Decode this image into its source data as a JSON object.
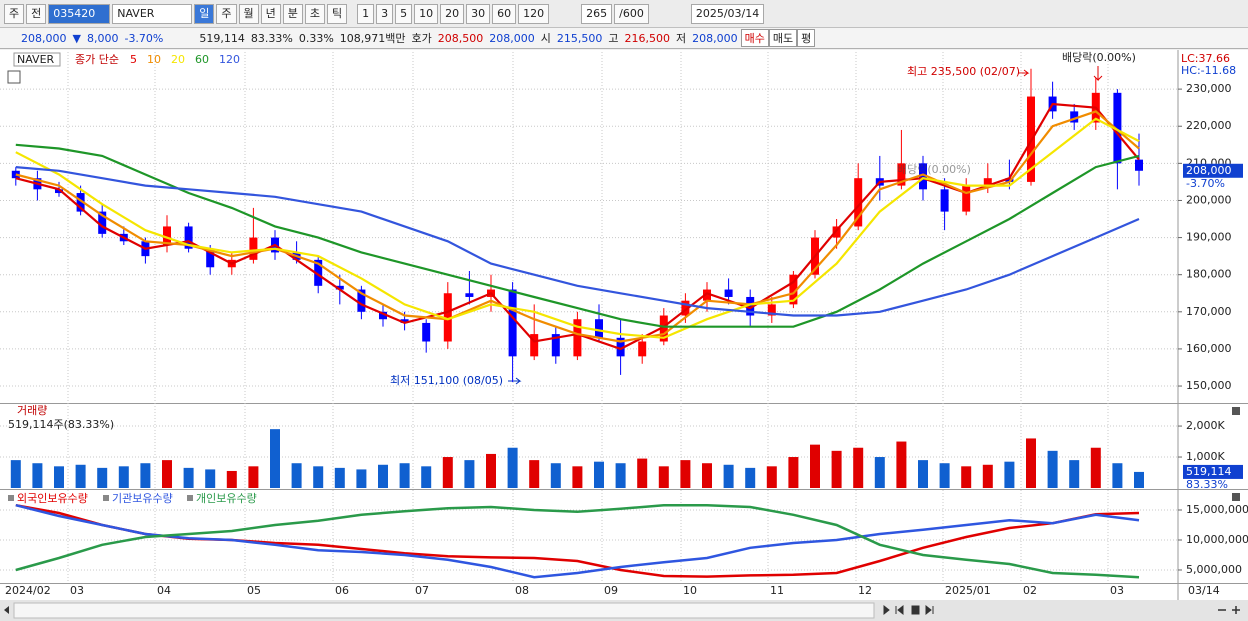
{
  "toolbar": [
    "주",
    "전",
    "035420",
    "NAVER",
    "일",
    "주",
    "월",
    "년",
    "분",
    "초",
    "틱",
    "1",
    "3",
    "5",
    "10",
    "20",
    "30",
    "60",
    "120",
    "265",
    "/600",
    "2025/03/14"
  ],
  "info": [
    "208,000",
    "▼",
    "8,000",
    "-3.70%",
    "519,114",
    "83.33%",
    "0.33%",
    "108,971백만",
    "호가",
    "208,500",
    "208,000",
    "시",
    "215,500",
    "고",
    "216,500",
    "저",
    "208,000",
    "매수",
    "매도",
    "평"
  ],
  "x_axis_labels": [
    "2024/02",
    "03",
    "04",
    "05",
    "06",
    "07",
    "08",
    "09",
    "10",
    "11",
    "12",
    "2025/01",
    "02",
    "03",
    "03/14"
  ],
  "chart_data": [
    {
      "type": "candlestick",
      "title": "NAVER",
      "ma_label": "종가 단순",
      "open": [
        208000,
        206000,
        203000,
        202000,
        197000,
        191000,
        189000,
        188000,
        193000,
        187000,
        182000,
        184000,
        190000,
        186000,
        184000,
        177000,
        176000,
        170000,
        168000,
        167000,
        162000,
        175000,
        174000,
        176000,
        158000,
        164000,
        158000,
        168000,
        163000,
        158000,
        162000,
        169000,
        173000,
        176000,
        174000,
        169000,
        172000,
        180000,
        190000,
        193000,
        206000,
        204000,
        210000,
        203000,
        197000,
        204000,
        206000,
        205000,
        228000,
        224000,
        221000,
        229000,
        211000
      ],
      "high": [
        209000,
        208000,
        205000,
        204000,
        199000,
        193000,
        190000,
        196000,
        194000,
        188000,
        186000,
        198000,
        192000,
        189000,
        185000,
        180000,
        177000,
        172000,
        170000,
        168000,
        178000,
        181000,
        180000,
        178000,
        172000,
        166000,
        170000,
        172000,
        168000,
        164000,
        171000,
        175000,
        178000,
        179000,
        176000,
        174000,
        181000,
        192000,
        195000,
        210000,
        212000,
        219000,
        212000,
        206000,
        206000,
        210000,
        211000,
        235500,
        232000,
        226000,
        233000,
        230000,
        218000
      ],
      "low": [
        204000,
        200000,
        201000,
        196000,
        190000,
        188000,
        183000,
        186000,
        186000,
        180000,
        180000,
        183000,
        184000,
        183000,
        175000,
        172000,
        168000,
        166000,
        165000,
        159000,
        160000,
        172000,
        170000,
        151100,
        157000,
        156000,
        157000,
        162000,
        153000,
        156000,
        161000,
        167000,
        170000,
        172000,
        166000,
        167000,
        171000,
        179000,
        187000,
        192000,
        200000,
        203000,
        200000,
        192000,
        196000,
        202000,
        203000,
        204000,
        222000,
        219000,
        219000,
        203000,
        204000
      ],
      "close": [
        206000,
        203000,
        202000,
        197000,
        191000,
        189000,
        185000,
        193000,
        187000,
        182000,
        184000,
        190000,
        186000,
        184000,
        177000,
        176000,
        170000,
        168000,
        167000,
        162000,
        175000,
        174000,
        176000,
        158000,
        164000,
        158000,
        168000,
        163000,
        158000,
        162000,
        169000,
        173000,
        176000,
        174000,
        169000,
        172000,
        180000,
        190000,
        193000,
        206000,
        204000,
        210000,
        203000,
        197000,
        204000,
        206000,
        205000,
        228000,
        224000,
        221000,
        229000,
        210000,
        208000
      ],
      "up_color": "#ff0000",
      "down_color": "#0000ff",
      "series": [
        {
          "name": "5",
          "color": "#e00000",
          "values": [
            206000,
            203000,
            193000,
            187000,
            189000,
            183000,
            188000,
            180000,
            172000,
            167000,
            170000,
            175000,
            162000,
            164000,
            160000,
            166000,
            175000,
            171000,
            178000,
            192000,
            205000,
            206000,
            202000,
            206000,
            226000,
            225000,
            211000
          ]
        },
        {
          "name": "10",
          "color": "#f08c00",
          "values": [
            207000,
            204000,
            196000,
            189000,
            188000,
            185000,
            187000,
            183000,
            175000,
            169000,
            168000,
            173000,
            168000,
            164000,
            162000,
            164000,
            173000,
            172000,
            175000,
            188000,
            203000,
            207000,
            202000,
            205000,
            220000,
            224000,
            214000
          ]
        },
        {
          "name": "20",
          "color": "#f5e600",
          "values": [
            213000,
            207000,
            199000,
            192000,
            188000,
            186000,
            187000,
            185000,
            179000,
            172000,
            168000,
            172000,
            170000,
            166000,
            164000,
            163000,
            168000,
            172000,
            173000,
            183000,
            197000,
            206000,
            204000,
            204000,
            213000,
            222000,
            216000
          ]
        },
        {
          "name": "60",
          "color": "#1e9628",
          "values": [
            215000,
            214000,
            212000,
            207000,
            202000,
            198000,
            193000,
            190000,
            186000,
            183000,
            180000,
            177000,
            174000,
            171000,
            168000,
            166000,
            166000,
            166000,
            166000,
            170000,
            176000,
            183000,
            189000,
            195000,
            202000,
            209000,
            212000
          ]
        },
        {
          "name": "120",
          "color": "#3355dd",
          "values": [
            209000,
            208000,
            206000,
            204000,
            203000,
            202000,
            201000,
            199000,
            197000,
            193000,
            189000,
            183000,
            180000,
            177000,
            175000,
            173000,
            171000,
            170000,
            169000,
            169000,
            170000,
            173000,
            176000,
            180000,
            185000,
            190000,
            195000
          ]
        }
      ],
      "annotations": [
        "최고 235,500 (02/07)",
        "최저 151,100 (08/05)",
        "배당락(0.00%)",
        "배당락(0.00%)"
      ],
      "lc": "LC:37.66",
      "hc": "HC:-11.68",
      "last_label": "208,000",
      "last_change": "-3.70%",
      "ylim": [
        145700,
        240000
      ],
      "yticks": [
        {
          "value": 150000,
          "label": "150,000"
        },
        {
          "value": 160000,
          "label": "160,000"
        },
        {
          "value": 170000,
          "label": "170,000"
        },
        {
          "value": 180000,
          "label": "180,000"
        },
        {
          "value": 190000,
          "label": "190,000"
        },
        {
          "value": 200000,
          "label": "200,000"
        },
        {
          "value": 210000,
          "label": "210,000"
        },
        {
          "value": 220000,
          "label": "220,000"
        },
        {
          "value": 230000,
          "label": "230,000"
        }
      ],
      "grid": true
    },
    {
      "type": "bar",
      "title": "거래량",
      "summary": "519,114주(83.33%)",
      "last_label": "519,114",
      "last_pct": "83.33%",
      "values": [
        900000,
        800000,
        700000,
        750000,
        650000,
        700000,
        800000,
        900000,
        650000,
        600000,
        550000,
        700000,
        1900000,
        800000,
        700000,
        650000,
        600000,
        750000,
        800000,
        700000,
        1000000,
        900000,
        1100000,
        1300000,
        900000,
        800000,
        700000,
        850000,
        800000,
        950000,
        700000,
        900000,
        800000,
        750000,
        650000,
        700000,
        1000000,
        1400000,
        1200000,
        1300000,
        1000000,
        1500000,
        900000,
        800000,
        700000,
        750000,
        850000,
        1600000,
        1200000,
        900000,
        1300000,
        800000,
        519114
      ],
      "up_color": "#e00000",
      "down_color": "#1060d0",
      "ylim": [
        0,
        2680000
      ],
      "yticks": [
        {
          "value": 1000000,
          "label": "1,000K"
        },
        {
          "value": 2000000,
          "label": "2,000K"
        }
      ],
      "grid": true
    },
    {
      "type": "line",
      "series": [
        {
          "name": "외국인보유수량",
          "color": "#e00000",
          "values": [
            15800000,
            14500000,
            12500000,
            11000000,
            10200000,
            10000000,
            9500000,
            9200000,
            8500000,
            7800000,
            7300000,
            7100000,
            7000000,
            6500000,
            5000000,
            4000000,
            3900000,
            4100000,
            4200000,
            4500000,
            6500000,
            8700000,
            10500000,
            12000000,
            12800000,
            14300000,
            14500000
          ]
        },
        {
          "name": "기관보유수량",
          "color": "#2f56e0",
          "values": [
            15800000,
            14000000,
            12500000,
            11000000,
            10300000,
            10000000,
            9200000,
            8300000,
            8000000,
            7500000,
            6700000,
            5500000,
            3800000,
            4500000,
            5500000,
            6300000,
            7000000,
            8700000,
            9500000,
            10000000,
            11000000,
            11700000,
            12500000,
            13300000,
            12800000,
            14200000,
            13300000
          ]
        },
        {
          "name": "개인보유수량",
          "color": "#2a9a4a",
          "values": [
            5000000,
            7000000,
            9200000,
            10500000,
            11000000,
            11500000,
            12500000,
            13200000,
            14200000,
            14800000,
            15300000,
            15500000,
            15000000,
            14700000,
            15200000,
            15800000,
            15800000,
            15500000,
            14200000,
            12500000,
            9200000,
            7500000,
            6700000,
            6000000,
            4500000,
            4200000,
            3800000
          ]
        }
      ],
      "ylim": [
        2830000,
        18000000
      ],
      "yticks": [
        {
          "value": 5000000,
          "label": "5,000,000"
        },
        {
          "value": 10000000,
          "label": "10,000,000"
        },
        {
          "value": 15000000,
          "label": "15,000,000"
        }
      ],
      "grid": true
    }
  ]
}
